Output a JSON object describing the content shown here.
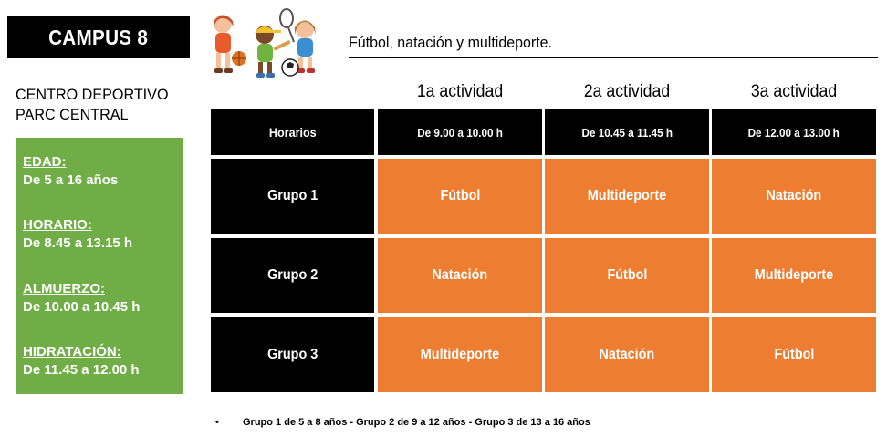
{
  "header": {
    "campus_title": "CAMPUS 8",
    "subtitle": "Fútbol, natación y multideporte."
  },
  "venue": {
    "line1": "CENTRO DEPORTIVO",
    "line2": "PARC CENTRAL"
  },
  "info": [
    {
      "label": "EDAD:",
      "value": "De 5 a 16 años"
    },
    {
      "label": "HORARIO:",
      "value": "De 8.45 a 13.15  h"
    },
    {
      "label": "ALMUERZO:",
      "value": "De 10.00 a 10.45 h"
    },
    {
      "label": "HIDRATACIÓN:",
      "value": "De 11.45 a 12.00 h"
    }
  ],
  "schedule": {
    "columns": [
      "1a actividad",
      "2a actividad",
      "3a actividad"
    ],
    "time_label": "Horarios",
    "times": [
      "De 9.00  a 10.00 h",
      "De 10.45 a 11.45 h",
      "De 12.00 a 13.00 h"
    ],
    "rows": [
      {
        "group": "Grupo 1",
        "activities": [
          "Fútbol",
          "Multideporte",
          "Natación"
        ]
      },
      {
        "group": "Grupo 2",
        "activities": [
          "Natación",
          "Fútbol",
          "Multideporte"
        ]
      },
      {
        "group": "Grupo 3",
        "activities": [
          "Multideporte",
          "Natación",
          "Fútbol"
        ]
      }
    ]
  },
  "footnote": {
    "bullet": "•",
    "text": "Grupo 1 de 5 a 8 años - Grupo 2 de 9 a 12 años - Grupo 3 de 13 a 16 años"
  },
  "colors": {
    "green": "#70ad47",
    "orange": "#ed7d31",
    "black": "#000000"
  },
  "illustration": "kids-playing-sports-icon"
}
